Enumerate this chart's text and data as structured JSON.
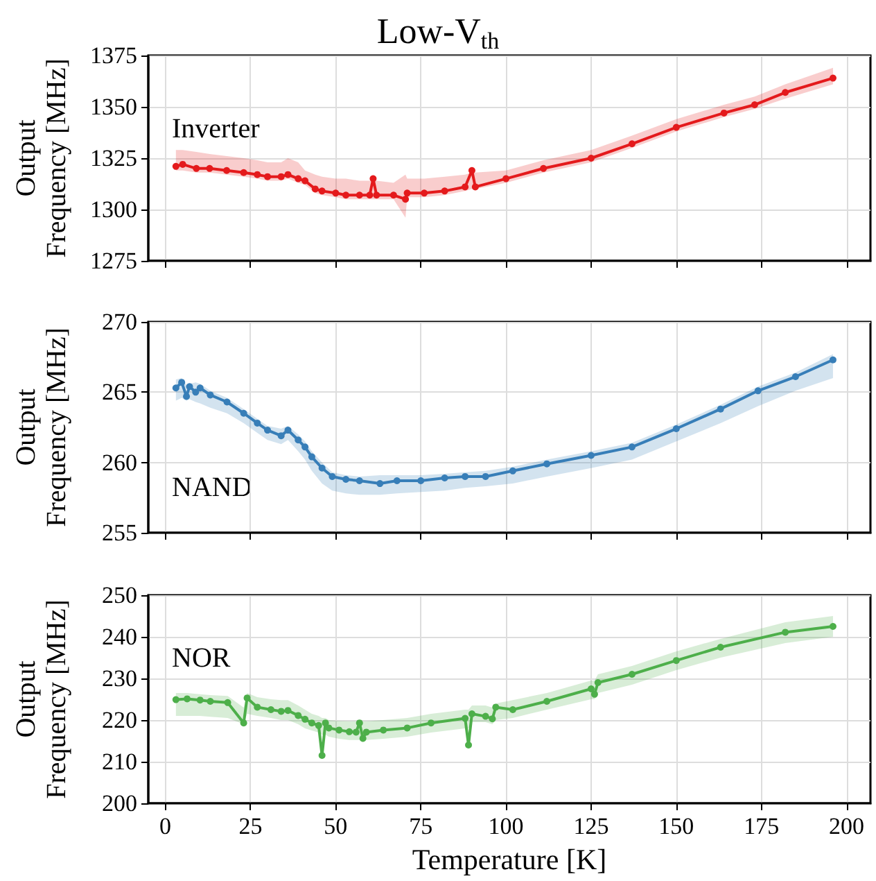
{
  "chart_data": [
    {
      "type": "line",
      "title": "Low-V$_{th}$",
      "ylabel": "Output\nFrequency [MHz]",
      "annotations": [
        "Inverter"
      ],
      "xlim": [
        -5,
        207
      ],
      "xticks": [
        0,
        25,
        50,
        75,
        100,
        125,
        150,
        175,
        200
      ],
      "ylim": [
        1275,
        1375
      ],
      "yticks": [
        1275,
        1300,
        1325,
        1350,
        1375
      ],
      "tick_labels": "y",
      "grid": true,
      "marker": "circle",
      "series": [
        {
          "color": "#e41a1c",
          "x": [
            3.1,
            5.1,
            9.1,
            13,
            18,
            23,
            27,
            30,
            34,
            36,
            39,
            41,
            44,
            46,
            50,
            53,
            57,
            60,
            61,
            62,
            67,
            70.5,
            71,
            76,
            82,
            88,
            90,
            91,
            100,
            111,
            125,
            137,
            150,
            164,
            173,
            182,
            196
          ],
          "values": [
            1321,
            1322,
            1320,
            1320,
            1319,
            1318,
            1317,
            1316,
            1316,
            1317,
            1315,
            1314,
            1310,
            1309,
            1308,
            1307,
            1307,
            1307,
            1315,
            1307,
            1307,
            1305,
            1308,
            1308,
            1309,
            1311,
            1319,
            1311,
            1315,
            1320,
            1325,
            1332,
            1340,
            1347,
            1351,
            1357,
            1364
          ],
          "lower": [
            1319,
            1319,
            1318,
            1318,
            1317,
            1316,
            1315,
            1314,
            1314,
            1315,
            1313,
            1312,
            1308,
            1307,
            1306,
            1305,
            1305,
            1305,
            1305,
            1305,
            1305,
            1296,
            1306,
            1306,
            1307,
            1309,
            1310,
            1310,
            1313,
            1318,
            1323,
            1330,
            1338,
            1345,
            1349,
            1354,
            1361
          ],
          "upper": [
            1329,
            1329,
            1328,
            1327,
            1326,
            1325,
            1324,
            1323,
            1323,
            1325,
            1323,
            1319,
            1317,
            1316,
            1315,
            1315,
            1314,
            1314,
            1314,
            1314,
            1313,
            1317,
            1315,
            1315,
            1316,
            1317,
            1318,
            1318,
            1319,
            1324,
            1329,
            1336,
            1344,
            1351,
            1355,
            1361,
            1369
          ]
        }
      ]
    },
    {
      "type": "line",
      "ylabel": "Output\nFrequency [MHz]",
      "annotations": [
        "NAND"
      ],
      "xlim": [
        -5,
        207
      ],
      "xticks": [
        0,
        25,
        50,
        75,
        100,
        125,
        150,
        175,
        200
      ],
      "ylim": [
        255,
        270
      ],
      "yticks": [
        255,
        260,
        265,
        270
      ],
      "tick_labels": "y",
      "grid": true,
      "marker": "circle",
      "series": [
        {
          "color": "#377eb8",
          "x": [
            3.1,
            4.8,
            6.2,
            7.1,
            8.9,
            10.2,
            13.2,
            18.1,
            23,
            27,
            30,
            34,
            36,
            39,
            41,
            43,
            46,
            49,
            53,
            57,
            63,
            68,
            75,
            82,
            88,
            94,
            102,
            112,
            125,
            137,
            150,
            163,
            174,
            185,
            196
          ],
          "values": [
            265.3,
            265.7,
            264.7,
            265.4,
            265.0,
            265.3,
            264.8,
            264.3,
            263.5,
            262.8,
            262.3,
            261.9,
            262.3,
            261.6,
            261.1,
            260.4,
            259.6,
            259.0,
            258.8,
            258.7,
            258.5,
            258.7,
            258.7,
            258.9,
            259.0,
            259.0,
            259.4,
            259.9,
            260.5,
            261.1,
            262.4,
            263.8,
            265.1,
            266.1,
            267.3
          ],
          "lower": [
            264.4,
            264.6,
            264.4,
            264.5,
            264.3,
            264.2,
            263.9,
            263.5,
            262.8,
            262.1,
            261.6,
            261.3,
            261.6,
            260.8,
            260.2,
            259.4,
            258.5,
            258.0,
            257.8,
            257.7,
            257.7,
            257.8,
            257.9,
            258.0,
            258.2,
            258.3,
            258.5,
            259.0,
            259.6,
            260.2,
            261.5,
            262.8,
            264.0,
            265.1,
            266.0
          ],
          "upper": [
            265.9,
            266.0,
            265.5,
            265.6,
            265.7,
            265.6,
            265.1,
            264.6,
            263.8,
            263.1,
            262.6,
            262.4,
            262.6,
            262.0,
            261.5,
            260.8,
            260.0,
            259.3,
            259.1,
            259.0,
            259.1,
            259.1,
            259.1,
            259.2,
            259.3,
            259.4,
            259.7,
            260.2,
            260.8,
            261.4,
            262.7,
            264.1,
            265.4,
            266.4,
            267.7
          ]
        }
      ]
    },
    {
      "type": "line",
      "ylabel": "Output\nFrequency [MHz]",
      "xlabel": "Temperature [K]",
      "annotations": [
        "NOR"
      ],
      "xlim": [
        -5,
        207
      ],
      "xticks": [
        0,
        25,
        50,
        75,
        100,
        125,
        150,
        175,
        200
      ],
      "ylim": [
        200,
        250
      ],
      "yticks": [
        200,
        210,
        220,
        230,
        240,
        250
      ],
      "grid": true,
      "marker": "circle",
      "series": [
        {
          "color": "#4daf4a",
          "x": [
            3.1,
            6.4,
            10.2,
            13.2,
            18.3,
            23,
            24,
            27,
            31,
            34,
            36,
            39,
            41,
            43,
            45,
            46,
            47,
            48,
            51,
            54,
            56,
            57,
            58,
            59,
            64,
            71,
            78,
            88,
            89,
            90,
            94,
            96,
            97,
            102,
            112,
            125,
            126,
            127,
            137,
            150,
            163,
            182,
            196
          ],
          "values": [
            224.9,
            225.1,
            224.8,
            224.5,
            224.2,
            219.3,
            225.3,
            223.1,
            222.5,
            222.1,
            222.3,
            221.1,
            220.2,
            219.3,
            218.7,
            211.5,
            219.3,
            218.1,
            217.6,
            217.2,
            217.1,
            219.3,
            215.6,
            217.1,
            217.6,
            218.1,
            219.3,
            220.4,
            214.0,
            221.5,
            220.9,
            220.3,
            223.1,
            222.5,
            224.5,
            227.5,
            226.2,
            229.0,
            231.0,
            234.3,
            237.5,
            241.1,
            242.5
          ],
          "lower": [
            221,
            221,
            221,
            220.8,
            220.5,
            219,
            221.5,
            221,
            220.5,
            220,
            220,
            219,
            218,
            217.5,
            217,
            216.5,
            216.5,
            216,
            215.5,
            215.2,
            215.2,
            215.2,
            215.2,
            215.2,
            215.5,
            216,
            217,
            218,
            218,
            219.5,
            219.5,
            219,
            220,
            220.5,
            222.5,
            225,
            225,
            226.5,
            228.5,
            232,
            235,
            238.5,
            240
          ],
          "upper": [
            226.5,
            226.5,
            226.2,
            226,
            225.8,
            223,
            226.5,
            225.5,
            225,
            224.8,
            224.8,
            223.5,
            222.5,
            221.5,
            221,
            220.5,
            220.5,
            220,
            219.8,
            219.7,
            219.7,
            219.7,
            219.7,
            219.7,
            220,
            220.5,
            221.5,
            222.5,
            222.5,
            223.5,
            223.5,
            223,
            224,
            224.8,
            226.5,
            229.5,
            229.5,
            231,
            233,
            236.5,
            239.5,
            243.5,
            245
          ]
        }
      ]
    }
  ]
}
